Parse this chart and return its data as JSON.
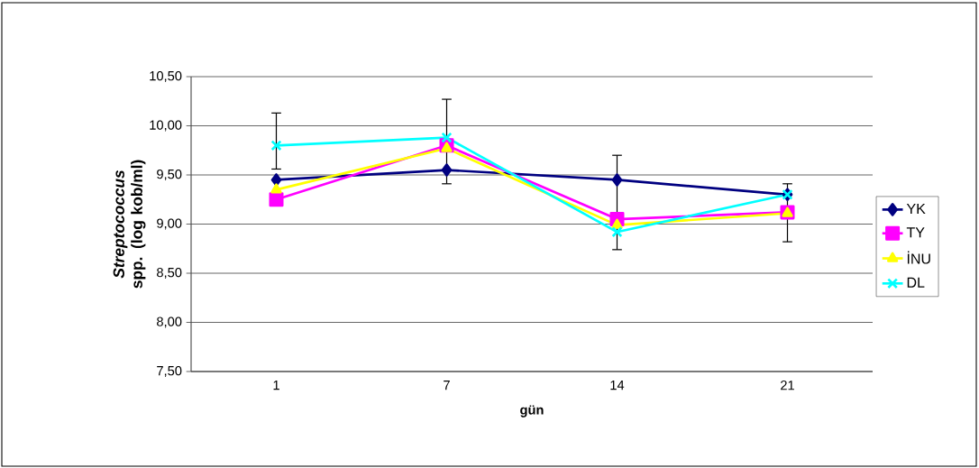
{
  "chart_data": {
    "type": "line",
    "xlabel": "gün",
    "ylabel": "*Streptococcus* spp. (log kob/ml)",
    "categories": [
      "1",
      "7",
      "14",
      "21"
    ],
    "ylim": [
      7.5,
      10.5
    ],
    "yticks": [
      {
        "value": 7.5,
        "label": "7,50"
      },
      {
        "value": 8.0,
        "label": "8,00"
      },
      {
        "value": 8.5,
        "label": "8,50"
      },
      {
        "value": 9.0,
        "label": "9,00"
      },
      {
        "value": 9.5,
        "label": "9,50"
      },
      {
        "value": 10.0,
        "label": "10,00"
      },
      {
        "value": 10.5,
        "label": "10,50"
      }
    ],
    "grid": "y",
    "legend": "right",
    "line_style": "solid",
    "series": [
      {
        "name": "YK",
        "color": "#000080",
        "marker": "diamond",
        "values": [
          9.45,
          9.55,
          9.45,
          9.3
        ],
        "errors": [
          null,
          null,
          [
            8.74,
            9.7
          ],
          null
        ]
      },
      {
        "name": "TY",
        "color": "#ff00ff",
        "marker": "square",
        "values": [
          9.25,
          9.8,
          9.05,
          9.12
        ],
        "errors": [
          null,
          null,
          null,
          [
            8.82,
            9.41
          ]
        ]
      },
      {
        "name": "İNU",
        "color": "#ffff00",
        "marker": "triangle",
        "values": [
          9.35,
          9.77,
          8.99,
          9.11
        ]
      },
      {
        "name": "DL",
        "color": "#00ffff",
        "marker": "cross",
        "values": [
          9.8,
          9.88,
          8.92,
          9.3
        ],
        "errors": [
          [
            9.56,
            10.13
          ],
          [
            9.41,
            10.27
          ],
          null,
          null
        ]
      }
    ]
  }
}
